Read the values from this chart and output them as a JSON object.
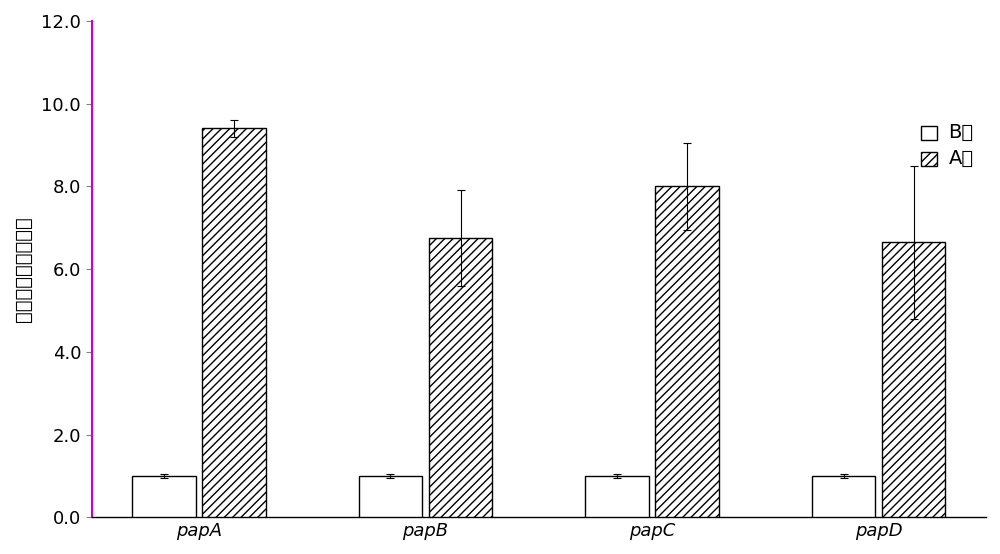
{
  "categories": [
    "papA",
    "papB",
    "papC",
    "papD"
  ],
  "B_values": [
    1.0,
    1.0,
    1.0,
    1.0
  ],
  "A_values": [
    9.4,
    6.75,
    8.0,
    6.65
  ],
  "B_errors": [
    0.05,
    0.05,
    0.05,
    0.05
  ],
  "A_errors": [
    0.2,
    1.15,
    1.05,
    1.85
  ],
  "ylabel": "基因相对表达变化量",
  "ylim": [
    0.0,
    12.0
  ],
  "yticks": [
    0.0,
    2.0,
    4.0,
    6.0,
    8.0,
    10.0,
    12.0
  ],
  "bar_width": 0.28,
  "B_color": "white",
  "A_color": "white",
  "A_hatch": "////",
  "legend_labels": [
    "B组",
    "A组"
  ],
  "figsize": [
    10.0,
    5.54
  ],
  "dpi": 100,
  "background_color": "white",
  "edge_color": "black",
  "font_size": 14,
  "tick_font_size": 13,
  "left_spine_color": "#cc00cc"
}
